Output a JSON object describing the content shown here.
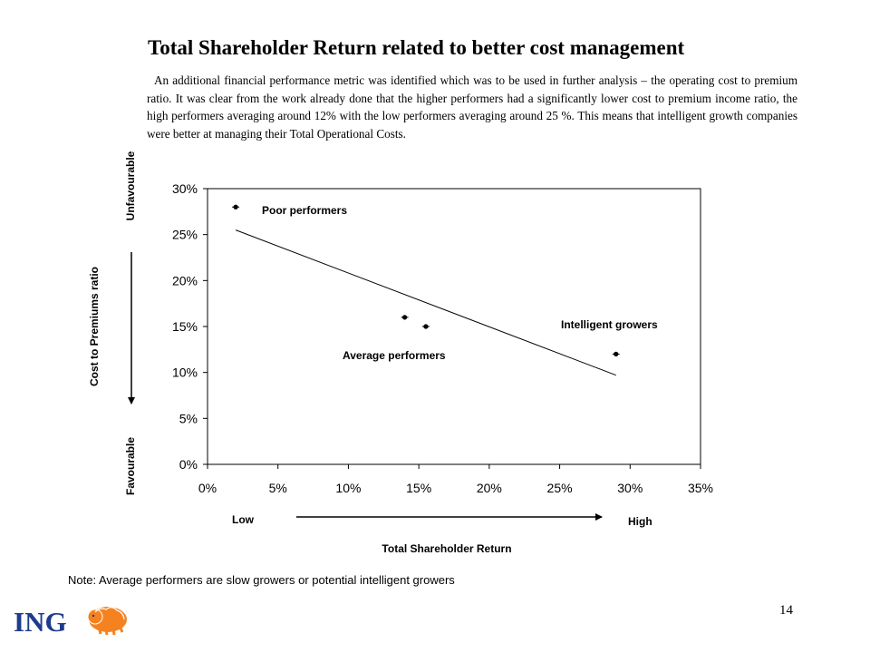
{
  "slide": {
    "title": "Total Shareholder Return related to better cost management",
    "paragraph": "An additional financial performance metric was identified which was to be used in further analysis – the operating cost to premium ratio. It was clear from the work already done that the higher performers had a significantly lower cost to premium income ratio, the high performers averaging around 12% with the low performers averaging around 25 %. This means that intelligent growth companies were better at managing their Total Operational Costs.",
    "note": "Note: Average performers are slow growers or potential intelligent growers",
    "page_number": "14",
    "logo_text": "ING",
    "brand_color": "#F58220",
    "logo_text_color": "#1E3C8C"
  },
  "chart_data": {
    "type": "scatter",
    "xlabel": "Total Shareholder Return",
    "ylabel": "Cost to Premiums ratio",
    "xlim": [
      0,
      35
    ],
    "ylim": [
      0,
      30
    ],
    "x_ticks": [
      "0%",
      "5%",
      "10%",
      "15%",
      "20%",
      "25%",
      "30%",
      "35%"
    ],
    "y_ticks": [
      "0%",
      "5%",
      "10%",
      "15%",
      "20%",
      "25%",
      "30%"
    ],
    "points": [
      {
        "x": 2.0,
        "y": 28.0
      },
      {
        "x": 14.0,
        "y": 16.0
      },
      {
        "x": 15.5,
        "y": 15.0
      },
      {
        "x": 29.0,
        "y": 12.0
      }
    ],
    "trendline": {
      "x": [
        2.0,
        29.0
      ],
      "y": [
        25.5,
        9.7
      ]
    },
    "annotations": [
      "Poor performers",
      "Average performers",
      "Intelligent growers"
    ],
    "x_direction": {
      "low": "Low",
      "high": "High"
    },
    "y_direction": {
      "top": "Unfavourable",
      "bottom": "Favourable"
    },
    "grid": false,
    "legend": "none"
  }
}
